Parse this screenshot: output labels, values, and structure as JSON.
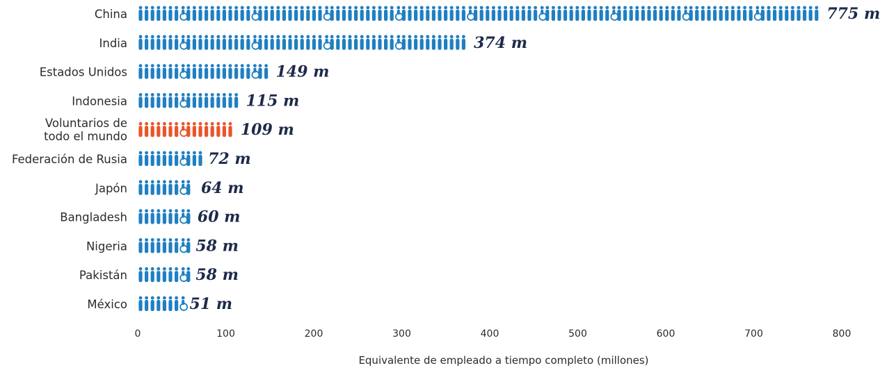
{
  "chart_data": {
    "type": "bar",
    "categories": [
      "China",
      "India",
      "Estados Unidos",
      "Indonesia",
      "Voluntarios de todo el mundo",
      "Federación de Rusia",
      "Japón",
      "Bangladesh",
      "Nigeria",
      "Pakistán",
      "México"
    ],
    "category_lines": [
      [
        "China"
      ],
      [
        "India"
      ],
      [
        "Estados Unidos"
      ],
      [
        "Indonesia"
      ],
      [
        "Voluntarios de",
        "todo el mundo"
      ],
      [
        "Federación de Rusia"
      ],
      [
        "Japón"
      ],
      [
        "Bangladesh"
      ],
      [
        "Nigeria"
      ],
      [
        "Pakistán"
      ],
      [
        "México"
      ]
    ],
    "values": [
      775,
      374,
      149,
      115,
      109,
      72,
      64,
      60,
      58,
      58,
      51
    ],
    "value_labels": [
      "775 m",
      "374 m",
      "149 m",
      "115 m",
      "109 m",
      "72 m",
      "64 m",
      "60 m",
      "58 m",
      "58 m",
      "51 m"
    ],
    "highlight_index": 4,
    "xlim": [
      0,
      800
    ],
    "xticks": [
      0,
      100,
      200,
      300,
      400,
      500,
      600,
      700,
      800
    ],
    "xlabel": "Equivalente de empleado a tiempo completo (millones)",
    "title": "",
    "grid": false,
    "colors": {
      "default": "#1f7fc2",
      "highlight": "#e8562a",
      "value_text": "#1d2a4a"
    }
  }
}
